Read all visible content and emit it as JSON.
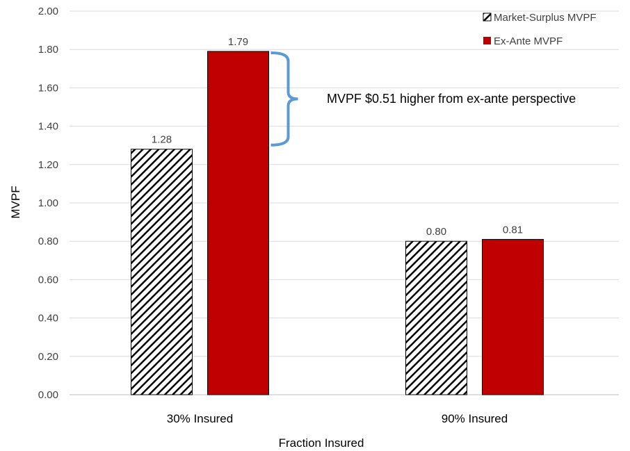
{
  "chart_data": {
    "type": "bar",
    "categories": [
      "30% Insured",
      "90% Insured"
    ],
    "series": [
      {
        "name": "Market-Surplus MVPF",
        "values": [
          1.28,
          0.8
        ],
        "fill": "hatch",
        "color": "#000000"
      },
      {
        "name": "Ex-Ante MVPF",
        "values": [
          1.79,
          0.81
        ],
        "fill": "solid",
        "color": "#C00000"
      }
    ],
    "data_labels": [
      [
        "1.28",
        "0.80"
      ],
      [
        "1.79",
        "0.81"
      ]
    ],
    "title": "",
    "xlabel": "Fraction Insured",
    "ylabel": "MVPF",
    "ylim": [
      0,
      2.0
    ],
    "y_ticks": [
      "0.00",
      "0.20",
      "0.40",
      "0.60",
      "0.80",
      "1.00",
      "1.20",
      "1.40",
      "1.60",
      "1.80",
      "2.00"
    ],
    "y_tick_values": [
      0,
      0.2,
      0.4,
      0.6,
      0.8,
      1.0,
      1.2,
      1.4,
      1.6,
      1.8,
      2.0
    ],
    "grid": "horizontal",
    "legend_position": "top-right",
    "annotation": {
      "text": "MVPF $0.51 higher from ex-ante perspective",
      "span": [
        1.28,
        1.79
      ],
      "bracket_color": "#5B9BD5"
    }
  }
}
